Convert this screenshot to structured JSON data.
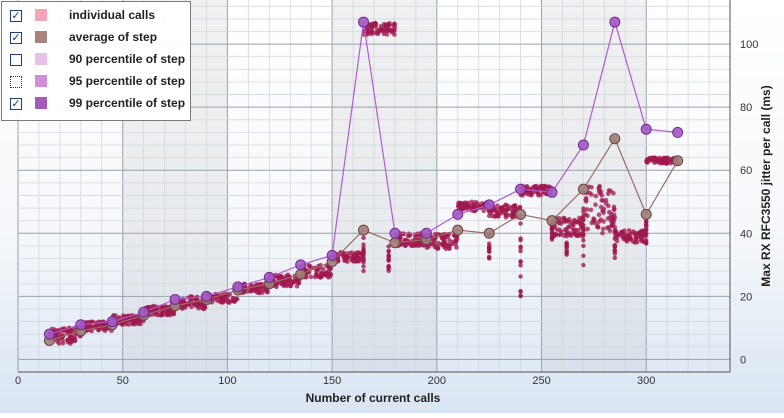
{
  "legend": [
    {
      "label": "individual calls",
      "checked": true,
      "dotted": false,
      "swatch": "#f4a6b6"
    },
    {
      "label": "average of step",
      "checked": true,
      "dotted": false,
      "swatch": "#a8837a"
    },
    {
      "label": "90 percentile of step",
      "checked": false,
      "dotted": false,
      "swatch": "#e8c1ea"
    },
    {
      "label": "95 percentile of step",
      "checked": false,
      "dotted": true,
      "swatch": "#cf8fd9"
    },
    {
      "label": "99 percentile of step",
      "checked": true,
      "dotted": false,
      "swatch": "#a45ab9"
    }
  ],
  "chart_data": {
    "type": "scatter",
    "xlabel": "Number of current calls",
    "ylabel": "Max RX RFC3550 jitter per call (ms)",
    "xlim": [
      0,
      340
    ],
    "ylim": [
      -4,
      114
    ],
    "x_ticks": [
      0,
      50,
      100,
      150,
      200,
      250,
      300
    ],
    "y_ticks": [
      0,
      20,
      40,
      60,
      80,
      100
    ],
    "shaded_bands": [
      [
        50,
        100
      ],
      [
        150,
        200
      ],
      [
        250,
        300
      ]
    ],
    "grid": true,
    "legend_position": "top-left",
    "colors": {
      "individual": "#a0184e",
      "average": "#a87a72",
      "p99": "#a457c5"
    },
    "series": [
      {
        "name": "average of step",
        "x": [
          15,
          30,
          45,
          60,
          75,
          90,
          105,
          120,
          135,
          150,
          165,
          180,
          195,
          210,
          225,
          240,
          255,
          270,
          285,
          300,
          315
        ],
        "values": [
          6,
          9,
          11,
          14,
          17,
          19,
          22,
          24,
          27,
          31,
          41,
          37,
          38,
          41,
          40,
          46,
          44,
          54,
          70,
          46,
          63
        ]
      },
      {
        "name": "99 percentile of step",
        "x": [
          15,
          30,
          45,
          60,
          75,
          90,
          105,
          120,
          135,
          150,
          165,
          180,
          195,
          210,
          225,
          240,
          255,
          270,
          285,
          300,
          315
        ],
        "values": [
          8,
          11,
          12,
          15,
          19,
          20,
          23,
          26,
          30,
          33,
          107,
          40,
          40,
          46,
          49,
          54,
          53,
          68,
          107,
          73,
          72
        ]
      }
    ],
    "individual_calls": [
      {
        "x_range": [
          15,
          30
        ],
        "y_range": [
          5,
          10
        ]
      },
      {
        "x_range": [
          30,
          45
        ],
        "y_range": [
          9,
          12
        ]
      },
      {
        "x_range": [
          45,
          60
        ],
        "y_range": [
          11,
          14
        ]
      },
      {
        "x_range": [
          60,
          75
        ],
        "y_range": [
          14,
          17
        ]
      },
      {
        "x_range": [
          75,
          90
        ],
        "y_range": [
          16,
          20
        ]
      },
      {
        "x_range": [
          90,
          105
        ],
        "y_range": [
          18,
          21
        ]
      },
      {
        "x_range": [
          105,
          120
        ],
        "y_range": [
          21,
          24
        ]
      },
      {
        "x_range": [
          120,
          135
        ],
        "y_range": [
          23,
          27
        ]
      },
      {
        "x_range": [
          135,
          150
        ],
        "y_range": [
          26,
          30
        ]
      },
      {
        "x_range": [
          150,
          165
        ],
        "y_range": [
          31,
          34
        ]
      },
      {
        "x_range": [
          165,
          180
        ],
        "y_range": [
          103,
          107
        ]
      },
      {
        "x_range": [
          180,
          195
        ],
        "y_range": [
          36,
          40
        ]
      },
      {
        "x_range": [
          195,
          210
        ],
        "y_range": [
          35,
          40
        ]
      },
      {
        "x_range": [
          210,
          225
        ],
        "y_range": [
          47,
          50
        ]
      },
      {
        "x_range": [
          225,
          240
        ],
        "y_range": [
          45,
          49
        ]
      },
      {
        "x_range": [
          240,
          255
        ],
        "y_range": [
          52,
          55
        ]
      },
      {
        "x_range": [
          255,
          270
        ],
        "y_range": [
          39,
          45
        ]
      },
      {
        "x_range": [
          270,
          285
        ],
        "y_range": [
          40,
          55
        ]
      },
      {
        "x_range": [
          285,
          300
        ],
        "y_range": [
          37,
          41
        ]
      },
      {
        "x_range": [
          300,
          315
        ],
        "y_range": [
          62,
          64
        ]
      }
    ]
  }
}
